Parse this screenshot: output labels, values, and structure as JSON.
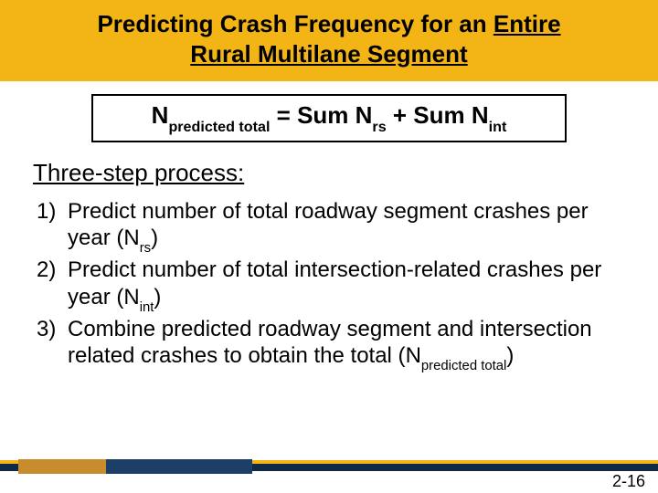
{
  "title": {
    "line1_pre": "Predicting Crash Frequency for an ",
    "line1_u": "Entire",
    "line2_u": "Rural Multilane Segment"
  },
  "formula": {
    "lhs_base": "N",
    "lhs_sub": "predicted total",
    "eq": " = Sum ",
    "t1_base": "N",
    "t1_sub": "rs",
    "plus": " + Sum ",
    "t2_base": "N",
    "t2_sub": "int"
  },
  "section_heading": "Three-step process:",
  "steps": [
    {
      "pre": "Predict number of total roadway segment crashes per year (",
      "nbase": "N",
      "nsub": "rs",
      "post": ")"
    },
    {
      "pre": "Predict number of total intersection-related crashes per year (",
      "nbase": "N",
      "nsub": "int",
      "post": ")"
    },
    {
      "pre": "Combine predicted roadway segment and intersection related crashes to obtain the total (",
      "nbase": "N",
      "nsub": "predicted total",
      "post": ")"
    }
  ],
  "page_number": "2-16",
  "colors": {
    "band": "#f3b416",
    "footer_dark": "#0e2a47",
    "footer_yellow": "#f3b416",
    "swatch_gold": "#c98c2c",
    "swatch_blue": "#1b3f66"
  }
}
